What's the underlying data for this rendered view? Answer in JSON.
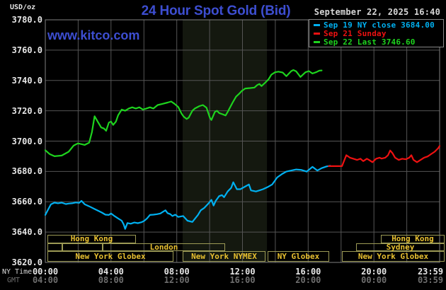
{
  "header": {
    "units_label": "USD/oz",
    "title": "24 Hour Spot Gold (Bid)",
    "datetime": "September 22, 2025 16:40",
    "watermark": "www.kitco.com"
  },
  "axis_corner": {
    "ny_time": "NY Time",
    "gmt": "GMT"
  },
  "legend": {
    "items": [
      {
        "label": "Sep 19 NY close 3684.00",
        "color": "#00b0f0"
      },
      {
        "label": "Sep 21 Sunday",
        "color": "#ee1111"
      },
      {
        "label": "Sep 22 Last 3746.60",
        "color": "#1ed31e"
      }
    ]
  },
  "chart_data": {
    "type": "line",
    "title": "24 Hour Spot Gold (Bid)",
    "ylabel": "USD/oz",
    "grid": true,
    "colors": {
      "background": "#000000",
      "grid": "#555555",
      "border": "#808080",
      "band": "#14180f",
      "session_border": "#9c9a55",
      "session_text": "#e8c030"
    },
    "x_axis": {
      "min": 0,
      "max": 24,
      "gridline_hours": [
        2,
        4,
        6,
        8,
        10,
        12,
        14,
        16,
        18,
        20,
        22
      ],
      "ticks": [
        {
          "h": 0,
          "ny": "00:00",
          "gmt": "04:00"
        },
        {
          "h": 4,
          "ny": "04:00",
          "gmt": "08:00"
        },
        {
          "h": 8,
          "ny": "08:00",
          "gmt": "12:00"
        },
        {
          "h": 12,
          "ny": "12:00",
          "gmt": "16:00"
        },
        {
          "h": 16,
          "ny": "16:00",
          "gmt": "20:00"
        },
        {
          "h": 20,
          "ny": "20:00",
          "gmt": "00:00"
        },
        {
          "h": 23.44,
          "ny": "23:59",
          "gmt": "03:59"
        }
      ]
    },
    "y_axis": {
      "min": 3620,
      "max": 3780,
      "tick_step": 20,
      "ticks": [
        3780,
        3760,
        3740,
        3720,
        3700,
        3680,
        3660,
        3640,
        3620
      ]
    },
    "band": {
      "start_h": 8.36,
      "end_h": 13.49
    },
    "series": [
      {
        "id": "sep19",
        "name": "Sep 19 NY close",
        "close": 3684.0,
        "color": "#00b0f0",
        "points": [
          [
            0,
            3651.3
          ],
          [
            0.13,
            3654
          ],
          [
            0.34,
            3658.3
          ],
          [
            0.56,
            3659.4
          ],
          [
            0.77,
            3659
          ],
          [
            1.0,
            3659.4
          ],
          [
            1.25,
            3658.5
          ],
          [
            1.42,
            3658.8
          ],
          [
            1.63,
            3659
          ],
          [
            1.85,
            3659.5
          ],
          [
            2.06,
            3659.3
          ],
          [
            2.2,
            3660.6
          ],
          [
            2.4,
            3658.3
          ],
          [
            2.67,
            3657
          ],
          [
            3.0,
            3655.2
          ],
          [
            3.23,
            3654
          ],
          [
            3.44,
            3652.9
          ],
          [
            3.66,
            3651.5
          ],
          [
            3.87,
            3651.3
          ],
          [
            4.0,
            3652.3
          ],
          [
            4.22,
            3650.5
          ],
          [
            4.43,
            3649
          ],
          [
            4.65,
            3647.5
          ],
          [
            4.77,
            3645.1
          ],
          [
            4.86,
            3642.1
          ],
          [
            5.0,
            3646
          ],
          [
            5.2,
            3645.5
          ],
          [
            5.42,
            3646.3
          ],
          [
            5.63,
            3645.9
          ],
          [
            5.85,
            3646.5
          ],
          [
            6.02,
            3647.4
          ],
          [
            6.19,
            3649
          ],
          [
            6.37,
            3651.3
          ],
          [
            6.58,
            3651.5
          ],
          [
            6.8,
            3651.8
          ],
          [
            7.0,
            3652.3
          ],
          [
            7.18,
            3653.5
          ],
          [
            7.31,
            3654.4
          ],
          [
            7.44,
            3652.5
          ],
          [
            7.61,
            3651.8
          ],
          [
            7.74,
            3650.6
          ],
          [
            7.91,
            3651.5
          ],
          [
            8.09,
            3650
          ],
          [
            8.39,
            3650.6
          ],
          [
            8.65,
            3647.5
          ],
          [
            8.95,
            3646.7
          ],
          [
            9.29,
            3651.3
          ],
          [
            9.46,
            3654.4
          ],
          [
            9.68,
            3656
          ],
          [
            9.94,
            3659
          ],
          [
            10.11,
            3661.3
          ],
          [
            10.24,
            3657.5
          ],
          [
            10.37,
            3660.6
          ],
          [
            10.58,
            3663.7
          ],
          [
            10.75,
            3664.4
          ],
          [
            10.88,
            3663
          ],
          [
            11.1,
            3666.8
          ],
          [
            11.31,
            3669.1
          ],
          [
            11.44,
            3672.9
          ],
          [
            11.66,
            3668.3
          ],
          [
            11.87,
            3668.3
          ],
          [
            12.26,
            3670.6
          ],
          [
            12.39,
            3671.4
          ],
          [
            12.52,
            3667.5
          ],
          [
            12.82,
            3666.8
          ],
          [
            13.03,
            3667.5
          ],
          [
            13.25,
            3668.3
          ],
          [
            13.55,
            3669.8
          ],
          [
            13.81,
            3671.4
          ],
          [
            14.11,
            3676
          ],
          [
            14.41,
            3678.3
          ],
          [
            14.67,
            3679.9
          ],
          [
            14.97,
            3680.6
          ],
          [
            15.27,
            3681.3
          ],
          [
            15.57,
            3681
          ],
          [
            15.91,
            3679.9
          ],
          [
            16.26,
            3683
          ],
          [
            16.56,
            3680.6
          ],
          [
            16.82,
            3682.2
          ],
          [
            17.12,
            3683.3
          ],
          [
            17.33,
            3683.7
          ]
        ]
      },
      {
        "id": "sep21",
        "name": "Sep 21 Sunday",
        "color": "#ee1111",
        "points": [
          [
            17.25,
            3683.5
          ],
          [
            18.06,
            3683.5
          ],
          [
            18.11,
            3685
          ],
          [
            18.32,
            3690.7
          ],
          [
            18.54,
            3689.1
          ],
          [
            18.75,
            3688.4
          ],
          [
            18.97,
            3687.6
          ],
          [
            19.18,
            3688.4
          ],
          [
            19.35,
            3686.8
          ],
          [
            19.57,
            3688.4
          ],
          [
            19.7,
            3687.6
          ],
          [
            19.91,
            3686.1
          ],
          [
            20.13,
            3688.4
          ],
          [
            20.34,
            3689.1
          ],
          [
            20.47,
            3688.5
          ],
          [
            20.69,
            3689.1
          ],
          [
            20.86,
            3690.7
          ],
          [
            20.99,
            3693.8
          ],
          [
            21.12,
            3692.2
          ],
          [
            21.29,
            3689.1
          ],
          [
            21.51,
            3687.6
          ],
          [
            21.72,
            3688.4
          ],
          [
            21.94,
            3688
          ],
          [
            22.15,
            3689.1
          ],
          [
            22.28,
            3690.7
          ],
          [
            22.41,
            3687.6
          ],
          [
            22.62,
            3686.1
          ],
          [
            22.84,
            3687.6
          ],
          [
            23.05,
            3689.1
          ],
          [
            23.27,
            3689.9
          ],
          [
            23.48,
            3691.4
          ],
          [
            23.7,
            3693
          ],
          [
            23.91,
            3695.3
          ],
          [
            24.0,
            3696.8
          ]
        ]
      },
      {
        "id": "sep22",
        "name": "Sep 22 Last",
        "last": 3746.6,
        "color": "#1ed31e",
        "points": [
          [
            0,
            3694
          ],
          [
            0.26,
            3691.5
          ],
          [
            0.56,
            3690
          ],
          [
            1.0,
            3690.5
          ],
          [
            1.42,
            3693
          ],
          [
            1.72,
            3697
          ],
          [
            1.98,
            3698.5
          ],
          [
            2.2,
            3698
          ],
          [
            2.4,
            3697.5
          ],
          [
            2.67,
            3699
          ],
          [
            2.84,
            3706
          ],
          [
            3.0,
            3716.4
          ],
          [
            3.18,
            3713
          ],
          [
            3.4,
            3709
          ],
          [
            3.57,
            3708.3
          ],
          [
            3.7,
            3706.8
          ],
          [
            3.87,
            3712.2
          ],
          [
            4.0,
            3712.9
          ],
          [
            4.13,
            3710.7
          ],
          [
            4.3,
            3712.9
          ],
          [
            4.43,
            3717
          ],
          [
            4.65,
            3720.8
          ],
          [
            4.86,
            3720
          ],
          [
            5.08,
            3721.5
          ],
          [
            5.29,
            3722.3
          ],
          [
            5.51,
            3721.5
          ],
          [
            5.72,
            3722.3
          ],
          [
            5.94,
            3720.8
          ],
          [
            6.15,
            3721.5
          ],
          [
            6.37,
            3722.3
          ],
          [
            6.58,
            3721.5
          ],
          [
            6.84,
            3723.8
          ],
          [
            7.14,
            3724.6
          ],
          [
            7.44,
            3725.4
          ],
          [
            7.66,
            3726.1
          ],
          [
            7.87,
            3724.6
          ],
          [
            8.09,
            3722.5
          ],
          [
            8.3,
            3718
          ],
          [
            8.43,
            3716.1
          ],
          [
            8.6,
            3714.6
          ],
          [
            8.73,
            3715.5
          ],
          [
            8.95,
            3720
          ],
          [
            9.1,
            3721.5
          ],
          [
            9.38,
            3723.1
          ],
          [
            9.59,
            3723.8
          ],
          [
            9.81,
            3722
          ],
          [
            10.02,
            3715.4
          ],
          [
            10.11,
            3713.9
          ],
          [
            10.32,
            3719.2
          ],
          [
            10.45,
            3720
          ],
          [
            10.58,
            3718.5
          ],
          [
            10.8,
            3717.7
          ],
          [
            10.97,
            3716.9
          ],
          [
            11.1,
            3719.2
          ],
          [
            11.4,
            3725.4
          ],
          [
            11.61,
            3729.3
          ],
          [
            11.83,
            3731.6
          ],
          [
            11.96,
            3733.1
          ],
          [
            12.17,
            3734.7
          ],
          [
            12.47,
            3735
          ],
          [
            12.73,
            3735.3
          ],
          [
            12.9,
            3737
          ],
          [
            13.03,
            3737.7
          ],
          [
            13.16,
            3736.3
          ],
          [
            13.38,
            3738.5
          ],
          [
            13.59,
            3740.8
          ],
          [
            13.76,
            3743.8
          ],
          [
            13.98,
            3745.4
          ],
          [
            14.19,
            3745.8
          ],
          [
            14.45,
            3745.2
          ],
          [
            14.67,
            3742.8
          ],
          [
            14.97,
            3746.2
          ],
          [
            15.1,
            3746.9
          ],
          [
            15.27,
            3746
          ],
          [
            15.53,
            3742.3
          ],
          [
            15.83,
            3745.4
          ],
          [
            16.04,
            3746.2
          ],
          [
            16.26,
            3744.6
          ],
          [
            16.47,
            3745.4
          ],
          [
            16.69,
            3746.5
          ],
          [
            16.82,
            3746.6
          ]
        ]
      }
    ],
    "sessions": [
      {
        "row": 0,
        "start_h": 0.13,
        "end_h": 5.52,
        "label": "Hong Kong"
      },
      {
        "row": 0,
        "start_h": 20.42,
        "end_h": 24.3,
        "label": "Hong Kong"
      },
      {
        "row": 1,
        "start_h": 0.13,
        "end_h": 1.03,
        "label": ""
      },
      {
        "row": 1,
        "start_h": 1.03,
        "end_h": 3.49,
        "label": ""
      },
      {
        "row": 1,
        "start_h": 3.49,
        "end_h": 10.94,
        "label": "London"
      },
      {
        "row": 1,
        "start_h": 18.92,
        "end_h": 24.3,
        "label": "Sydney"
      },
      {
        "row": 2,
        "start_h": 0.13,
        "end_h": 7.8,
        "label": "New York Globex"
      },
      {
        "row": 2,
        "start_h": 8.36,
        "end_h": 13.4,
        "label": "New York NYMEX"
      },
      {
        "row": 2,
        "start_h": 13.53,
        "end_h": 17.28,
        "label": "NY Globex"
      },
      {
        "row": 2,
        "start_h": 18.05,
        "end_h": 24.3,
        "label": "New York Globex"
      }
    ]
  }
}
